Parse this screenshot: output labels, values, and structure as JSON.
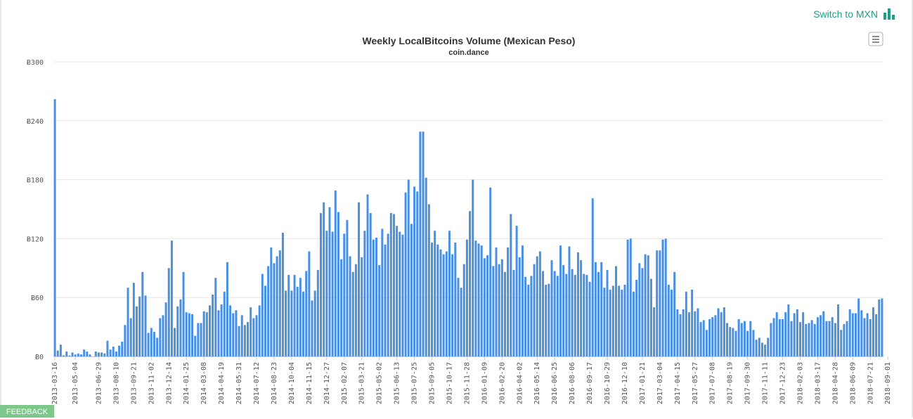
{
  "header": {
    "switch_label": "Switch to MXN",
    "switch_icon": "bar-chart-icon"
  },
  "feedback_label": "FEEDBACK",
  "menu_icon": "hamburger-menu-icon",
  "colors": {
    "bar": "#4a90e2",
    "accent": "#1e9e86",
    "feedback": "#7bc88a"
  },
  "chart_data": {
    "type": "bar",
    "title": "Weekly LocalBitcoins Volume (Mexican Peso)",
    "subtitle": "coin.dance",
    "xlabel": "",
    "ylabel": "",
    "ylim": [
      0,
      300
    ],
    "y_ticks": [
      0,
      60,
      120,
      180,
      240,
      300
    ],
    "y_tick_prefix": "Ƀ",
    "grid": true,
    "start_date": "2013-03-16",
    "x_tick_labels": [
      "2013-03-16",
      "2013-05-04",
      "2013-06-29",
      "2013-08-10",
      "2013-09-21",
      "2013-11-02",
      "2013-12-14",
      "2014-01-25",
      "2014-03-08",
      "2014-04-19",
      "2014-05-31",
      "2014-07-12",
      "2014-08-23",
      "2014-10-04",
      "2014-11-15",
      "2014-12-27",
      "2015-02-07",
      "2015-03-21",
      "2015-05-02",
      "2015-06-13",
      "2015-07-25",
      "2015-09-05",
      "2015-10-17",
      "2015-11-28",
      "2016-01-09",
      "2016-02-20",
      "2016-04-02",
      "2016-05-14",
      "2016-06-25",
      "2016-08-06",
      "2016-09-17",
      "2016-10-29",
      "2016-12-10",
      "2017-01-21",
      "2017-03-04",
      "2017-04-15",
      "2017-05-27",
      "2017-07-08",
      "2017-08-19",
      "2017-09-30",
      "2017-11-11",
      "2017-12-23",
      "2018-02-03",
      "2018-03-17",
      "2018-04-28",
      "2018-06-09",
      "2018-07-21",
      "2018-09-01"
    ],
    "values": [
      262,
      6,
      12,
      1,
      5,
      1,
      4,
      2,
      3,
      2,
      7,
      5,
      2,
      0,
      5,
      4,
      4,
      3,
      16,
      7,
      10,
      5,
      11,
      15,
      32,
      70,
      39,
      75,
      51,
      61,
      86,
      62,
      24,
      29,
      25,
      19,
      39,
      42,
      55,
      90,
      118,
      29,
      51,
      58,
      86,
      45,
      44,
      43,
      21,
      34,
      34,
      46,
      45,
      52,
      63,
      80,
      47,
      53,
      66,
      96,
      52,
      44,
      47,
      31,
      42,
      32,
      35,
      50,
      39,
      42,
      52,
      84,
      72,
      92,
      111,
      95,
      102,
      108,
      126,
      67,
      83,
      67,
      83,
      71,
      80,
      66,
      87,
      107,
      57,
      67,
      88,
      146,
      157,
      128,
      152,
      127,
      169,
      147,
      99,
      125,
      139,
      102,
      86,
      94,
      157,
      101,
      128,
      165,
      146,
      119,
      121,
      93,
      130,
      114,
      125,
      146,
      145,
      133,
      127,
      124,
      167,
      180,
      135,
      173,
      168,
      229,
      229,
      182,
      155,
      116,
      128,
      114,
      109,
      104,
      107,
      128,
      104,
      116,
      80,
      70,
      94,
      119,
      148,
      180,
      118,
      115,
      113,
      100,
      103,
      172,
      92,
      111,
      94,
      99,
      86,
      111,
      145,
      88,
      133,
      101,
      113,
      81,
      73,
      82,
      94,
      102,
      107,
      87,
      73,
      74,
      98,
      87,
      82,
      113,
      93,
      84,
      112,
      89,
      83,
      106,
      98,
      84,
      83,
      76,
      161,
      96,
      86,
      96,
      70,
      88,
      68,
      72,
      92,
      72,
      68,
      73,
      119,
      120,
      66,
      78,
      95,
      90,
      104,
      103,
      79,
      50,
      108,
      108,
      119,
      120,
      73,
      68,
      86,
      48,
      43,
      48,
      66,
      45,
      68,
      46,
      49,
      35,
      37,
      27,
      38,
      40,
      42,
      49,
      45,
      50,
      34,
      30,
      29,
      26,
      38,
      34,
      36,
      26,
      36,
      27,
      17,
      19,
      14,
      12,
      19,
      34,
      39,
      45,
      38,
      38,
      45,
      53,
      36,
      44,
      48,
      35,
      45,
      33,
      34,
      37,
      33,
      40,
      42,
      46,
      36,
      36,
      40,
      34,
      53,
      27,
      33,
      36,
      48,
      44,
      44,
      59,
      47,
      39,
      44,
      38,
      50,
      43,
      58,
      59
    ]
  }
}
